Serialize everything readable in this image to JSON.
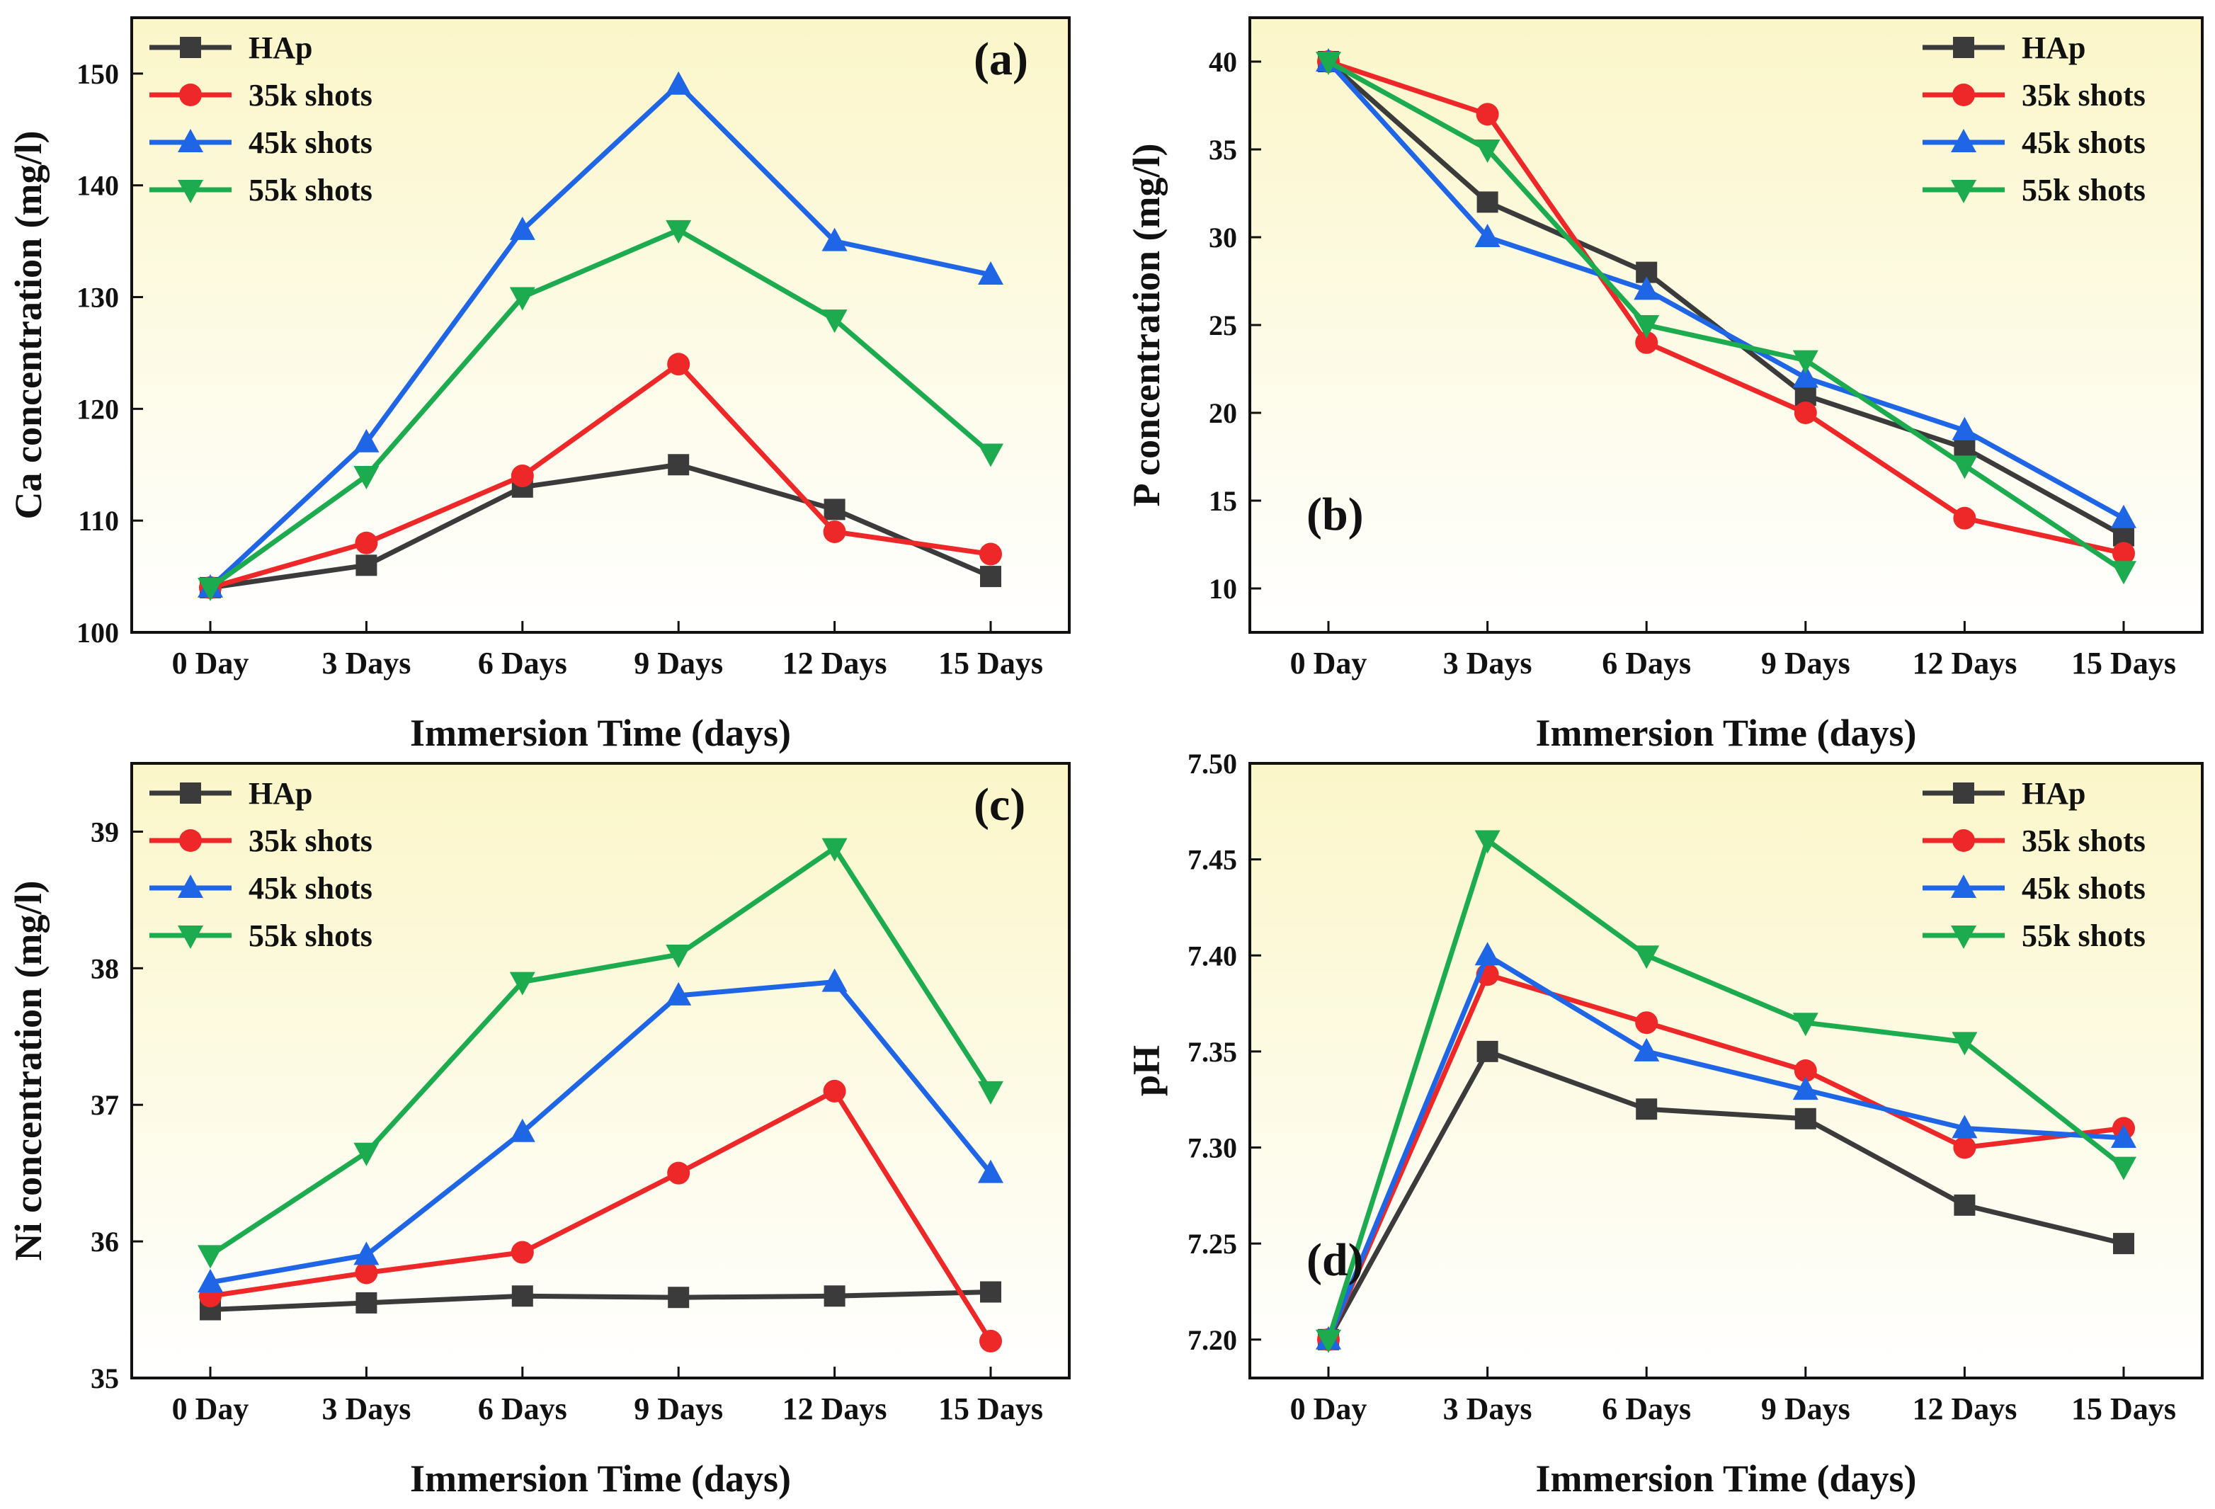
{
  "chart_data": [
    {
      "type": "line",
      "panel_label": "(a)",
      "legend_position": "top-left",
      "xlabel": "Immersion Time (days)",
      "ylabel": "Ca concentration (mg/l)",
      "categories": [
        "0 Day",
        "3 Days",
        "6 Days",
        "9 Days",
        "12 Days",
        "15 Days"
      ],
      "ylim": [
        100,
        155
      ],
      "yticks": [
        100,
        110,
        120,
        130,
        140,
        150
      ],
      "ytick_labels": [
        "100",
        "110",
        "120",
        "130",
        "140",
        "150"
      ],
      "series": [
        {
          "name": "HAp",
          "values": [
            104,
            106,
            113,
            115,
            111,
            105
          ]
        },
        {
          "name": "35k shots",
          "values": [
            104,
            108,
            114,
            124,
            109,
            107
          ]
        },
        {
          "name": "45k shots",
          "values": [
            104,
            117,
            136,
            149,
            135,
            132
          ]
        },
        {
          "name": "55k shots",
          "values": [
            104,
            114,
            130,
            136,
            128,
            116
          ]
        }
      ]
    },
    {
      "type": "line",
      "panel_label": "(b)",
      "legend_position": "top-right",
      "xlabel": "Immersion Time (days)",
      "ylabel": "P concentration (mg/l)",
      "categories": [
        "0 Day",
        "3 Days",
        "6 Days",
        "9 Days",
        "12 Days",
        "15 Days"
      ],
      "ylim": [
        7.5,
        42.5
      ],
      "yticks": [
        10,
        15,
        20,
        25,
        30,
        35,
        40
      ],
      "ytick_labels": [
        "10",
        "15",
        "20",
        "25",
        "30",
        "35",
        "40"
      ],
      "series": [
        {
          "name": "HAp",
          "values": [
            40,
            32,
            28,
            21,
            18,
            13
          ]
        },
        {
          "name": "35k shots",
          "values": [
            40,
            37,
            24,
            20,
            14,
            12
          ]
        },
        {
          "name": "45k shots",
          "values": [
            40,
            30,
            27,
            22,
            19,
            14
          ]
        },
        {
          "name": "55k shots",
          "values": [
            40,
            35,
            25,
            23,
            17,
            11
          ]
        }
      ]
    },
    {
      "type": "line",
      "panel_label": "(c)",
      "legend_position": "top-left",
      "xlabel": "Immersion Time (days)",
      "ylabel": "Ni concentration (mg/l)",
      "categories": [
        "0 Day",
        "3 Days",
        "6 Days",
        "9 Days",
        "12 Days",
        "15 Days"
      ],
      "ylim": [
        35,
        39.5
      ],
      "yticks": [
        35,
        36,
        37,
        38,
        39
      ],
      "ytick_labels": [
        "35",
        "36",
        "37",
        "38",
        "39"
      ],
      "series": [
        {
          "name": "HAp",
          "values": [
            35.5,
            35.55,
            35.6,
            35.59,
            35.6,
            35.63
          ]
        },
        {
          "name": "35k shots",
          "values": [
            35.6,
            35.77,
            35.92,
            36.5,
            37.1,
            35.27
          ]
        },
        {
          "name": "45k shots",
          "values": [
            35.7,
            35.9,
            36.8,
            37.8,
            37.9,
            36.5
          ]
        },
        {
          "name": "55k shots",
          "values": [
            35.9,
            36.65,
            37.9,
            38.1,
            38.88,
            37.1
          ]
        }
      ]
    },
    {
      "type": "line",
      "panel_label": "(d)",
      "legend_position": "top-right",
      "xlabel": "Immersion Time (days)",
      "ylabel": "pH",
      "categories": [
        "0 Day",
        "3 Days",
        "6 Days",
        "9 Days",
        "12 Days",
        "15 Days"
      ],
      "ylim": [
        7.18,
        7.5
      ],
      "yticks": [
        7.2,
        7.25,
        7.3,
        7.35,
        7.4,
        7.45,
        7.5
      ],
      "ytick_labels": [
        "7.20",
        "7.25",
        "7.30",
        "7.35",
        "7.40",
        "7.45",
        "7.50"
      ],
      "series": [
        {
          "name": "HAp",
          "values": [
            7.2,
            7.35,
            7.32,
            7.315,
            7.27,
            7.25
          ]
        },
        {
          "name": "35k shots",
          "values": [
            7.2,
            7.39,
            7.365,
            7.34,
            7.3,
            7.31
          ]
        },
        {
          "name": "45k shots",
          "values": [
            7.2,
            7.4,
            7.35,
            7.33,
            7.31,
            7.305
          ]
        },
        {
          "name": "55k shots",
          "values": [
            7.2,
            7.46,
            7.4,
            7.365,
            7.355,
            7.29
          ]
        }
      ]
    }
  ],
  "series_colors": [
    "#3b3b3b",
    "#ee2828",
    "#1f66e6",
    "#1cab4e"
  ],
  "series_markers": [
    "square",
    "circle",
    "triangle-up",
    "triangle-down"
  ],
  "gradient_colors": [
    "#fbf6c9",
    "#ffffff"
  ]
}
